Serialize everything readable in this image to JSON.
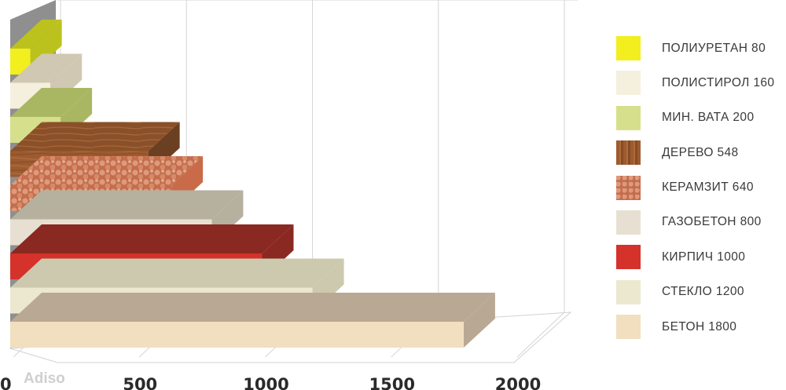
{
  "chart_data": {
    "type": "bar",
    "orientation": "horizontal",
    "style": "3d",
    "categories": [
      "БЕТОН 1800",
      "СТЕКЛО 1200",
      "КИРПИЧ 1000",
      "ГАЗОБЕТОН 800",
      "КЕРАМЗИТ 640",
      "ДЕРЕВО 548",
      "МИН. ВАТА 200",
      "ПОЛИСТИРОЛ 160",
      "ПОЛИУРЕТАН 80"
    ],
    "values": [
      1800,
      1200,
      1000,
      800,
      640,
      548,
      200,
      160,
      80
    ],
    "colors": [
      "#f1dfbf",
      "#ebe8cf",
      "#d4322a",
      "#e7e0d2",
      "#c97a58",
      "#9c5b30",
      "#d6e08c",
      "#f5efdd",
      "#f3ee1d"
    ],
    "side_colors": [
      "#b9a994",
      "#cdc9ae",
      "#8a2822",
      "#b6b09f",
      "#c96b48",
      "#6b3f22",
      "#a9b763",
      "#d0c8b3",
      "#bcc21d"
    ],
    "xlim": [
      0,
      2000
    ],
    "x_ticks": [
      0,
      500,
      1000,
      1500,
      2000
    ],
    "x_tick_labels": [
      "0",
      "500",
      "1000",
      "1500",
      "2000"
    ],
    "legend": {
      "position": "right",
      "entries": [
        "ПОЛИУРЕТАН 80",
        "ПОЛИСТИРОЛ 160",
        "МИН. ВАТА 200",
        "ДЕРЕВО 548",
        "КЕРАМЗИТ 640",
        "ГАЗОБЕТОН 800",
        "КИРПИЧ 1000",
        "СТЕКЛО 1200",
        "БЕТОН 1800"
      ]
    },
    "grid": true
  },
  "watermark": "Adiso"
}
